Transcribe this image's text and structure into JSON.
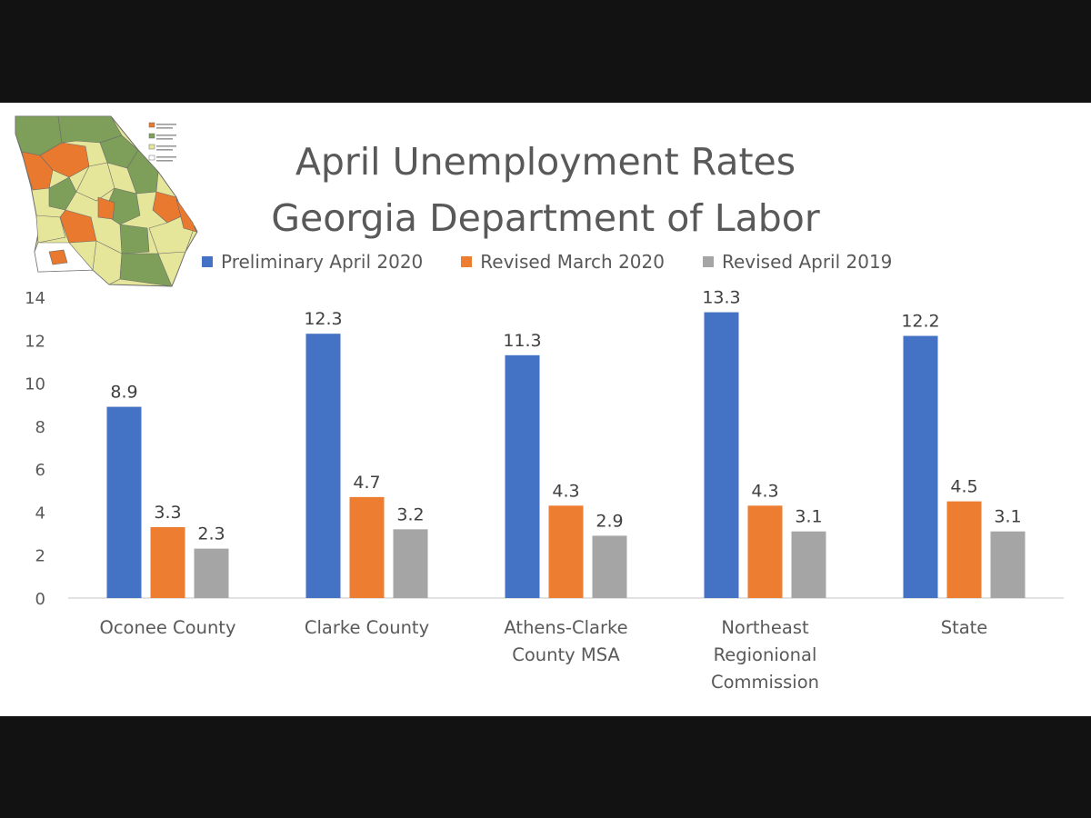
{
  "chart_data": {
    "type": "bar",
    "title": [
      "April Unemployment Rates",
      "Georgia Department of Labor"
    ],
    "categories": [
      [
        "Oconee County"
      ],
      [
        "Clarke County"
      ],
      [
        "Athens-Clarke",
        "County MSA"
      ],
      [
        "Northeast",
        "Regionional",
        "Commission"
      ],
      [
        "State"
      ]
    ],
    "series": [
      {
        "name": "Preliminary April 2020",
        "color": "#4472c4",
        "values": [
          8.9,
          12.3,
          11.3,
          13.3,
          12.2
        ]
      },
      {
        "name": "Revised March 2020",
        "color": "#ed7d31",
        "values": [
          3.3,
          4.7,
          4.3,
          4.3,
          4.5
        ]
      },
      {
        "name": "Revised April 2019",
        "color": "#a5a5a5",
        "values": [
          2.3,
          3.2,
          2.9,
          3.1,
          3.1
        ]
      }
    ],
    "ylim": [
      0,
      14
    ],
    "yticks": [
      "0",
      "2",
      "4",
      "6",
      "8",
      "10",
      "12",
      "14"
    ],
    "legend_position": "top",
    "grid": false,
    "data_labels": true
  },
  "colors": {
    "map_orange": "#e8792f",
    "map_green": "#7d9f5a",
    "map_yellow": "#e6e69a",
    "map_white": "#ffffff",
    "text": "#595959",
    "axis": "#d9d9d9"
  },
  "decor": {
    "map": "georgia-county-unemployment-map-icon"
  }
}
